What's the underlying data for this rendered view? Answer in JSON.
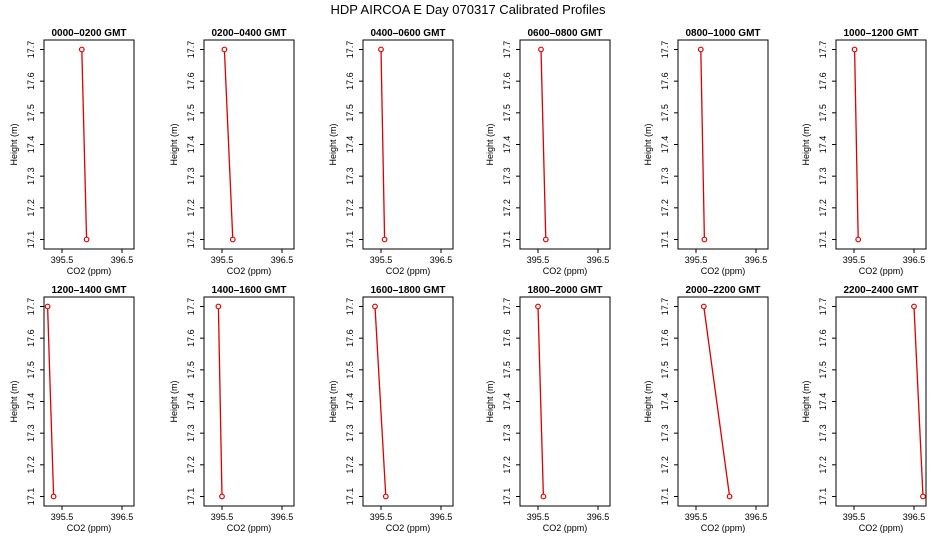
{
  "figure": {
    "title": "HDP  AIRCOA E  Day 070317  Calibrated Profiles"
  },
  "chart_data": [
    {
      "type": "line",
      "title": "0000–0200 GMT",
      "xlabel": "CO2 (ppm)",
      "ylabel": "Height (m)",
      "xlim": [
        395.2,
        396.7
      ],
      "ylim": [
        17.07,
        17.73
      ],
      "xticks": [
        "395.5",
        "396.5"
      ],
      "yticks": [
        "17.1",
        "17.2",
        "17.3",
        "17.4",
        "17.5",
        "17.6",
        "17.7"
      ],
      "x": [
        395.83,
        395.91
      ],
      "y": [
        17.7,
        17.1
      ],
      "grid": false,
      "line_color": "#dd0000",
      "marker": "circle-open"
    },
    {
      "type": "line",
      "title": "0200–0400 GMT",
      "xlabel": "CO2 (ppm)",
      "ylabel": "Height (m)",
      "xlim": [
        395.2,
        396.7
      ],
      "ylim": [
        17.07,
        17.73
      ],
      "xticks": [
        "395.5",
        "396.5"
      ],
      "yticks": [
        "17.1",
        "17.2",
        "17.3",
        "17.4",
        "17.5",
        "17.6",
        "17.7"
      ],
      "x": [
        395.54,
        395.68
      ],
      "y": [
        17.7,
        17.1
      ],
      "grid": false,
      "line_color": "#dd0000",
      "marker": "circle-open"
    },
    {
      "type": "line",
      "title": "0400–0600 GMT",
      "xlabel": "CO2 (ppm)",
      "ylabel": "Height (m)",
      "xlim": [
        395.2,
        396.7
      ],
      "ylim": [
        17.07,
        17.73
      ],
      "xticks": [
        "395.5",
        "396.5"
      ],
      "yticks": [
        "17.1",
        "17.2",
        "17.3",
        "17.4",
        "17.5",
        "17.6",
        "17.7"
      ],
      "x": [
        395.5,
        395.56
      ],
      "y": [
        17.7,
        17.1
      ],
      "grid": false,
      "line_color": "#dd0000",
      "marker": "circle-open"
    },
    {
      "type": "line",
      "title": "0600–0800 GMT",
      "xlabel": "CO2 (ppm)",
      "ylabel": "Height (m)",
      "xlim": [
        395.2,
        396.7
      ],
      "ylim": [
        17.07,
        17.73
      ],
      "xticks": [
        "395.5",
        "396.5"
      ],
      "yticks": [
        "17.1",
        "17.2",
        "17.3",
        "17.4",
        "17.5",
        "17.6",
        "17.7"
      ],
      "x": [
        395.55,
        395.63
      ],
      "y": [
        17.7,
        17.1
      ],
      "grid": false,
      "line_color": "#dd0000",
      "marker": "circle-open"
    },
    {
      "type": "line",
      "title": "0800–1000 GMT",
      "xlabel": "CO2 (ppm)",
      "ylabel": "Height (m)",
      "xlim": [
        395.2,
        396.7
      ],
      "ylim": [
        17.07,
        17.73
      ],
      "xticks": [
        "395.5",
        "396.5"
      ],
      "yticks": [
        "17.1",
        "17.2",
        "17.3",
        "17.4",
        "17.5",
        "17.6",
        "17.7"
      ],
      "x": [
        395.58,
        395.64
      ],
      "y": [
        17.7,
        17.1
      ],
      "grid": false,
      "line_color": "#dd0000",
      "marker": "circle-open"
    },
    {
      "type": "line",
      "title": "1000–1200 GMT",
      "xlabel": "CO2 (ppm)",
      "ylabel": "Height (m)",
      "xlim": [
        395.2,
        396.7
      ],
      "ylim": [
        17.07,
        17.73
      ],
      "xticks": [
        "395.5",
        "396.5"
      ],
      "yticks": [
        "17.1",
        "17.2",
        "17.3",
        "17.4",
        "17.5",
        "17.6",
        "17.7"
      ],
      "x": [
        395.51,
        395.57
      ],
      "y": [
        17.7,
        17.1
      ],
      "grid": false,
      "line_color": "#dd0000",
      "marker": "circle-open"
    },
    {
      "type": "line",
      "title": "1200–1400 GMT",
      "xlabel": "CO2 (ppm)",
      "ylabel": "Height (m)",
      "xlim": [
        395.2,
        396.7
      ],
      "ylim": [
        17.07,
        17.73
      ],
      "xticks": [
        "395.5",
        "396.5"
      ],
      "yticks": [
        "17.1",
        "17.2",
        "17.3",
        "17.4",
        "17.5",
        "17.6",
        "17.7"
      ],
      "x": [
        395.26,
        395.36
      ],
      "y": [
        17.7,
        17.1
      ],
      "grid": false,
      "line_color": "#dd0000",
      "marker": "circle-open"
    },
    {
      "type": "line",
      "title": "1400–1600 GMT",
      "xlabel": "CO2 (ppm)",
      "ylabel": "Height (m)",
      "xlim": [
        395.2,
        396.7
      ],
      "ylim": [
        17.07,
        17.73
      ],
      "xticks": [
        "395.5",
        "396.5"
      ],
      "yticks": [
        "17.1",
        "17.2",
        "17.3",
        "17.4",
        "17.5",
        "17.6",
        "17.7"
      ],
      "x": [
        395.44,
        395.5
      ],
      "y": [
        17.7,
        17.1
      ],
      "grid": false,
      "line_color": "#dd0000",
      "marker": "circle-open"
    },
    {
      "type": "line",
      "title": "1600–1800 GMT",
      "xlabel": "CO2 (ppm)",
      "ylabel": "Height (m)",
      "xlim": [
        395.2,
        396.7
      ],
      "ylim": [
        17.07,
        17.73
      ],
      "xticks": [
        "395.5",
        "396.5"
      ],
      "yticks": [
        "17.1",
        "17.2",
        "17.3",
        "17.4",
        "17.5",
        "17.6",
        "17.7"
      ],
      "x": [
        395.4,
        395.58
      ],
      "y": [
        17.7,
        17.1
      ],
      "grid": false,
      "line_color": "#dd0000",
      "marker": "circle-open"
    },
    {
      "type": "line",
      "title": "1800–2000 GMT",
      "xlabel": "CO2 (ppm)",
      "ylabel": "Height (m)",
      "xlim": [
        395.2,
        396.7
      ],
      "ylim": [
        17.07,
        17.73
      ],
      "xticks": [
        "395.5",
        "396.5"
      ],
      "yticks": [
        "17.1",
        "17.2",
        "17.3",
        "17.4",
        "17.5",
        "17.6",
        "17.7"
      ],
      "x": [
        395.5,
        395.59
      ],
      "y": [
        17.7,
        17.1
      ],
      "grid": false,
      "line_color": "#dd0000",
      "marker": "circle-open"
    },
    {
      "type": "line",
      "title": "2000–2200 GMT",
      "xlabel": "CO2 (ppm)",
      "ylabel": "Height (m)",
      "xlim": [
        395.2,
        396.7
      ],
      "ylim": [
        17.07,
        17.73
      ],
      "xticks": [
        "395.5",
        "396.5"
      ],
      "yticks": [
        "17.1",
        "17.2",
        "17.3",
        "17.4",
        "17.5",
        "17.6",
        "17.7"
      ],
      "x": [
        395.63,
        396.06
      ],
      "y": [
        17.7,
        17.1
      ],
      "grid": false,
      "line_color": "#dd0000",
      "marker": "circle-open"
    },
    {
      "type": "line",
      "title": "2200–2400 GMT",
      "xlabel": "CO2 (ppm)",
      "ylabel": "Height (m)",
      "xlim": [
        395.2,
        396.7
      ],
      "ylim": [
        17.07,
        17.73
      ],
      "xticks": [
        "395.5",
        "396.5"
      ],
      "yticks": [
        "17.1",
        "17.2",
        "17.3",
        "17.4",
        "17.5",
        "17.6",
        "17.7"
      ],
      "x": [
        396.5,
        396.65
      ],
      "y": [
        17.7,
        17.1
      ],
      "grid": false,
      "line_color": "#dd0000",
      "marker": "circle-open"
    }
  ]
}
